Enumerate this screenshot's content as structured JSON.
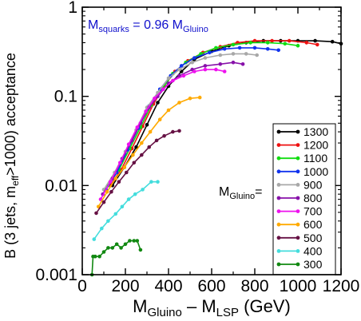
{
  "chart_data": {
    "type": "line",
    "xlabel_parts": [
      "M",
      "Gluino",
      " – M",
      "LSP",
      "  (GeV)"
    ],
    "ylabel_parts": [
      "B (3 jets, m",
      "eff",
      ">1000) acceptance"
    ],
    "xlim": [
      0,
      1200
    ],
    "ylim": [
      0.001,
      1
    ],
    "yscale": "log",
    "x_ticks": [
      0,
      200,
      400,
      600,
      800,
      1000,
      1200
    ],
    "y_ticks": [
      0.001,
      0.01,
      0.1,
      1
    ],
    "y_tick_labels": [
      "0.001",
      "0.01",
      "0.1",
      "1"
    ],
    "annotation_parts": [
      "M",
      "squarks",
      " = 0.96 M",
      "Gluino"
    ],
    "annotation_color": "#1010cc",
    "legend_title_parts": [
      "M",
      "Gluino",
      "="
    ],
    "legend_position": "right",
    "grid": false,
    "series": [
      {
        "name": "1300",
        "color": "#000000",
        "x": [
          140,
          195,
          250,
          300,
          350,
          400,
          460,
          520,
          600,
          680,
          760,
          840,
          920,
          1000,
          1080,
          1160,
          1200
        ],
        "y": [
          0.01,
          0.016,
          0.027,
          0.048,
          0.085,
          0.13,
          0.19,
          0.26,
          0.32,
          0.37,
          0.4,
          0.42,
          0.42,
          0.42,
          0.42,
          0.41,
          0.39
        ]
      },
      {
        "name": "1200",
        "color": "#ee1111",
        "x": [
          130,
          180,
          230,
          280,
          330,
          380,
          430,
          490,
          560,
          640,
          720,
          800,
          880,
          960,
          1040,
          1090
        ],
        "y": [
          0.01,
          0.015,
          0.026,
          0.046,
          0.082,
          0.13,
          0.19,
          0.25,
          0.31,
          0.36,
          0.4,
          0.42,
          0.42,
          0.42,
          0.4,
          0.38
        ]
      },
      {
        "name": "1100",
        "color": "#11dd11",
        "x": [
          120,
          170,
          220,
          270,
          320,
          370,
          420,
          480,
          550,
          620,
          700,
          780,
          860,
          940,
          1000
        ],
        "y": [
          0.01,
          0.015,
          0.026,
          0.045,
          0.08,
          0.12,
          0.18,
          0.24,
          0.3,
          0.35,
          0.38,
          0.4,
          0.4,
          0.39,
          0.37
        ]
      },
      {
        "name": "1000",
        "color": "#1133ee",
        "x": [
          110,
          160,
          210,
          260,
          310,
          360,
          410,
          460,
          520,
          590,
          660,
          730,
          800,
          860,
          910
        ],
        "y": [
          0.009,
          0.014,
          0.025,
          0.044,
          0.078,
          0.12,
          0.17,
          0.22,
          0.27,
          0.31,
          0.34,
          0.35,
          0.35,
          0.34,
          0.33
        ]
      },
      {
        "name": "900",
        "color": "#a8a8a8",
        "x": [
          100,
          150,
          200,
          250,
          300,
          350,
          400,
          450,
          510,
          570,
          640,
          700,
          760,
          810
        ],
        "y": [
          0.009,
          0.014,
          0.024,
          0.042,
          0.075,
          0.11,
          0.16,
          0.2,
          0.24,
          0.27,
          0.29,
          0.3,
          0.3,
          0.29
        ]
      },
      {
        "name": "800",
        "color": "#8811aa",
        "x": [
          95,
          140,
          185,
          230,
          270,
          310,
          350,
          400,
          450,
          510,
          570,
          640,
          700,
          745
        ],
        "y": [
          0.008,
          0.012,
          0.02,
          0.032,
          0.05,
          0.075,
          0.1,
          0.14,
          0.17,
          0.2,
          0.22,
          0.23,
          0.24,
          0.23
        ]
      },
      {
        "name": "700",
        "color": "#ee11ee",
        "x": [
          85,
          130,
          175,
          215,
          255,
          295,
          335,
          375,
          420,
          470,
          520,
          570,
          620,
          660
        ],
        "y": [
          0.007,
          0.011,
          0.018,
          0.029,
          0.045,
          0.068,
          0.095,
          0.12,
          0.15,
          0.17,
          0.19,
          0.2,
          0.2,
          0.19
        ]
      },
      {
        "name": "600",
        "color": "#ffaa00",
        "x": [
          75,
          115,
          155,
          195,
          235,
          275,
          315,
          360,
          400,
          450,
          500,
          545
        ],
        "y": [
          0.0058,
          0.0085,
          0.012,
          0.016,
          0.022,
          0.03,
          0.04,
          0.055,
          0.07,
          0.085,
          0.095,
          0.097
        ]
      },
      {
        "name": "500",
        "color": "#661144",
        "x": [
          65,
          100,
          135,
          170,
          205,
          240,
          275,
          310,
          345,
          380,
          420,
          450
        ],
        "y": [
          0.0049,
          0.0065,
          0.0085,
          0.011,
          0.014,
          0.018,
          0.022,
          0.027,
          0.032,
          0.036,
          0.04,
          0.041
        ]
      },
      {
        "name": "400",
        "color": "#44dddd",
        "x": [
          55,
          90,
          120,
          155,
          185,
          215,
          245,
          280,
          320,
          350
        ],
        "y": [
          0.0025,
          0.0033,
          0.004,
          0.0048,
          0.0058,
          0.007,
          0.008,
          0.009,
          0.011,
          0.011
        ]
      },
      {
        "name": "300",
        "color": "#118811",
        "x": [
          45,
          50,
          60,
          80,
          100,
          120,
          140,
          160,
          180,
          200,
          220,
          240,
          255,
          270
        ],
        "y": [
          0.001,
          0.0016,
          0.0016,
          0.0016,
          0.0018,
          0.002,
          0.002,
          0.0022,
          0.002,
          0.0022,
          0.0024,
          0.0024,
          0.0024,
          0.0019
        ]
      }
    ]
  }
}
